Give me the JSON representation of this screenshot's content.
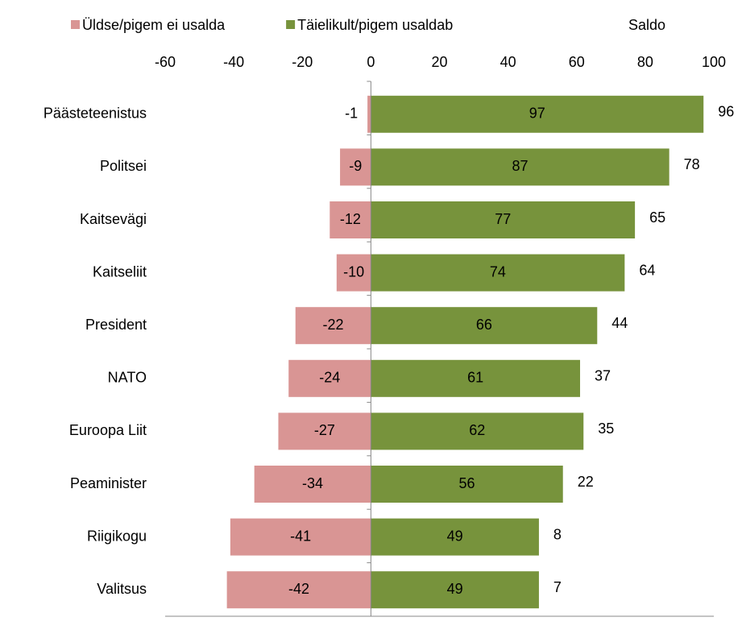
{
  "chart_data": {
    "type": "diverging-bar",
    "categories": [
      "Päästeteenistus",
      "Politsei",
      "Kaitsevägi",
      "Kaitseliit",
      "President",
      "NATO",
      "Euroopa Liit",
      "Peaminister",
      "Riigikogu",
      "Valitsus"
    ],
    "series": [
      {
        "name": "Üldse/pigem ei usalda",
        "color": "#d99594",
        "values": [
          -1,
          -9,
          -12,
          -10,
          -22,
          -24,
          -27,
          -34,
          -41,
          -42
        ]
      },
      {
        "name": "Täielikult/pigem usaldab",
        "color": "#77933c",
        "values": [
          97,
          87,
          77,
          74,
          66,
          61,
          62,
          56,
          49,
          49
        ]
      },
      {
        "name": "Saldo",
        "values": [
          96,
          78,
          65,
          64,
          44,
          37,
          35,
          22,
          8,
          7
        ]
      }
    ],
    "xlim": [
      -60,
      100
    ],
    "xticks": [
      -60,
      -40,
      -20,
      0,
      20,
      40,
      60,
      80,
      100
    ]
  }
}
